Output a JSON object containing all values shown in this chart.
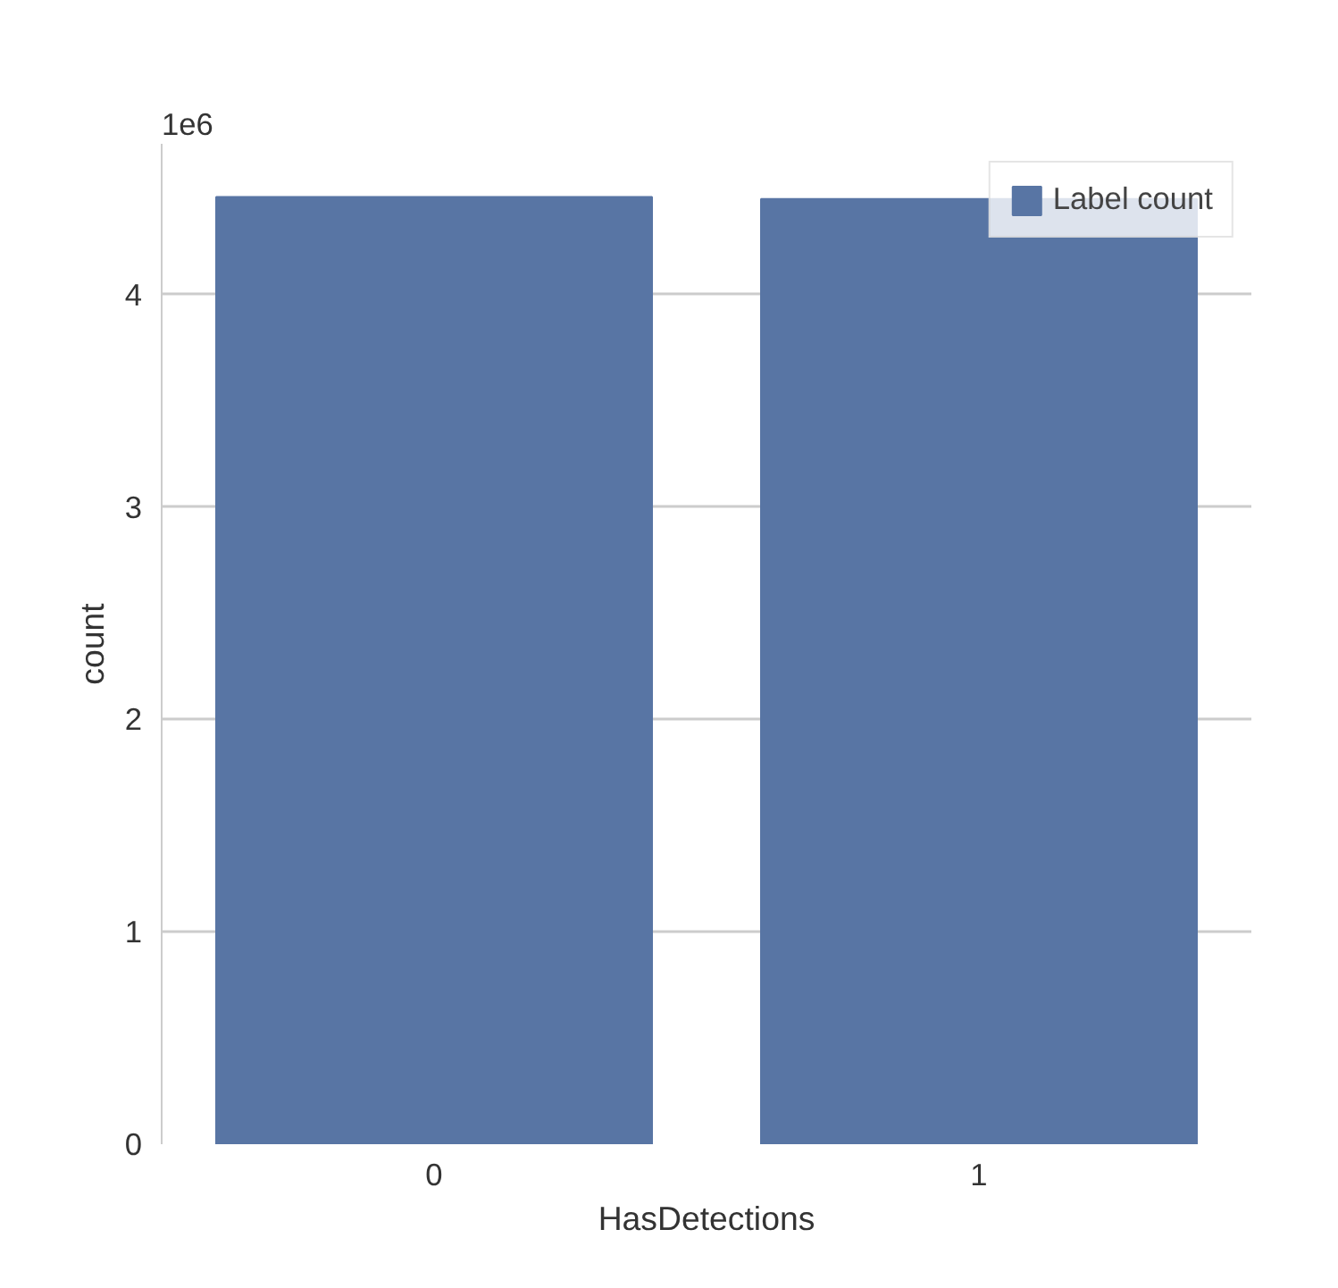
{
  "chart_data": {
    "type": "bar",
    "xlabel": "HasDetections",
    "ylabel": "count",
    "categories": [
      "0",
      "1"
    ],
    "series": [
      {
        "name": "Label count",
        "color": "#5875a4",
        "values": [
          4.46,
          4.45
        ]
      }
    ],
    "ylim": [
      0,
      4.71
    ],
    "yticks": [
      0,
      1,
      2,
      3,
      4
    ],
    "annotations": [
      "1e6"
    ],
    "grid": "y",
    "legend": "top right"
  }
}
